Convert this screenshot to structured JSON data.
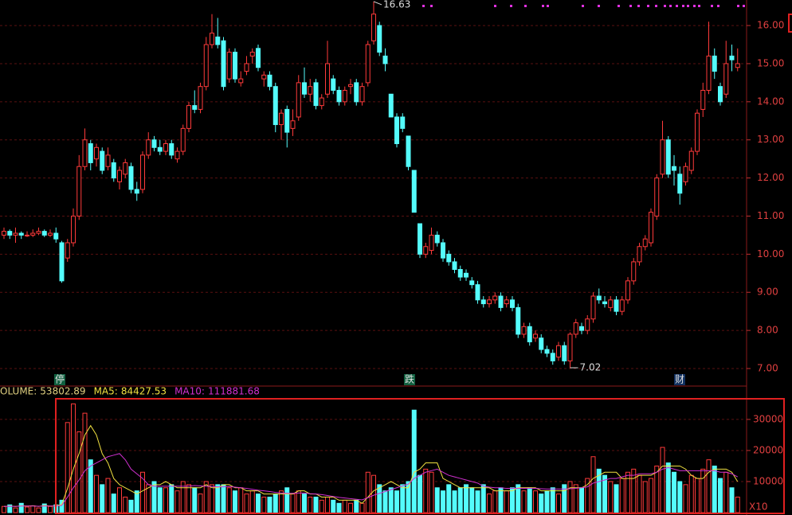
{
  "chart_data": [
    {
      "type": "candlestick",
      "up_color": "#ff3a3a",
      "down_color": "#54fcfc",
      "grid": true,
      "ylim": [
        6.54,
        16.67
      ],
      "yticks": [
        {
          "value": 7,
          "label": "7.00"
        },
        {
          "value": 8,
          "label": "8.00"
        },
        {
          "value": 9,
          "label": "9.00"
        },
        {
          "value": 10,
          "label": "10.00"
        },
        {
          "value": 11,
          "label": "11.00"
        },
        {
          "value": 12,
          "label": "12.00"
        },
        {
          "value": 13,
          "label": "13.00"
        },
        {
          "value": 14,
          "label": "14.00"
        },
        {
          "value": 15,
          "label": "15.00"
        },
        {
          "value": 16,
          "label": "16.00"
        }
      ],
      "markers": [
        "停",
        "跌",
        "财"
      ],
      "ohlc": [
        [
          10.5,
          10.7,
          10.4,
          10.6
        ],
        [
          10.6,
          10.65,
          10.4,
          10.5
        ],
        [
          10.5,
          10.7,
          10.3,
          10.55
        ],
        [
          10.55,
          10.6,
          10.4,
          10.5
        ],
        [
          10.5,
          10.6,
          10.45,
          10.5
        ],
        [
          10.5,
          10.65,
          10.45,
          10.55
        ],
        [
          10.55,
          10.7,
          10.5,
          10.6
        ],
        [
          10.6,
          10.65,
          10.45,
          10.5
        ],
        [
          10.5,
          10.65,
          10.45,
          10.55
        ],
        [
          10.55,
          10.7,
          10.3,
          10.4
        ],
        [
          10.3,
          10.35,
          9.25,
          9.3
        ],
        [
          9.9,
          10.4,
          9.8,
          10.3
        ],
        [
          10.3,
          11.2,
          10.2,
          11.0
        ],
        [
          11.0,
          12.6,
          10.9,
          12.3
        ],
        [
          12.3,
          13.3,
          12.2,
          13.0
        ],
        [
          12.9,
          13.0,
          12.2,
          12.4
        ],
        [
          12.5,
          12.9,
          12.3,
          12.8
        ],
        [
          12.7,
          12.8,
          12.1,
          12.2
        ],
        [
          12.3,
          12.8,
          12.2,
          12.6
        ],
        [
          12.4,
          12.5,
          11.9,
          12.0
        ],
        [
          11.9,
          12.3,
          11.7,
          12.2
        ],
        [
          12.1,
          12.5,
          12.0,
          12.4
        ],
        [
          12.3,
          12.4,
          11.6,
          11.7
        ],
        [
          11.7,
          11.9,
          11.4,
          11.6
        ],
        [
          11.7,
          12.7,
          11.6,
          12.6
        ],
        [
          12.6,
          13.2,
          12.5,
          13.0
        ],
        [
          13.0,
          13.1,
          12.7,
          12.8
        ],
        [
          12.8,
          13.0,
          12.6,
          12.7
        ],
        [
          12.7,
          13.0,
          12.6,
          12.9
        ],
        [
          12.9,
          13.0,
          12.5,
          12.6
        ],
        [
          12.5,
          12.8,
          12.4,
          12.7
        ],
        [
          12.7,
          13.4,
          12.6,
          13.3
        ],
        [
          13.3,
          14.0,
          13.2,
          13.9
        ],
        [
          13.9,
          14.3,
          13.7,
          13.8
        ],
        [
          13.8,
          14.5,
          13.7,
          14.4
        ],
        [
          14.4,
          15.7,
          14.3,
          15.5
        ],
        [
          15.5,
          16.3,
          15.4,
          15.8
        ],
        [
          15.7,
          16.2,
          15.4,
          15.5
        ],
        [
          15.6,
          15.7,
          14.3,
          14.4
        ],
        [
          14.6,
          15.4,
          14.5,
          15.3
        ],
        [
          15.3,
          15.4,
          14.5,
          14.6
        ],
        [
          14.5,
          14.8,
          14.4,
          14.6
        ],
        [
          14.8,
          15.2,
          14.7,
          15.0
        ],
        [
          15.2,
          15.4,
          15.0,
          15.3
        ],
        [
          15.4,
          15.5,
          14.8,
          14.9
        ],
        [
          14.6,
          14.8,
          14.4,
          14.7
        ],
        [
          14.7,
          14.8,
          14.3,
          14.4
        ],
        [
          14.4,
          14.5,
          13.2,
          13.4
        ],
        [
          13.4,
          13.8,
          13.0,
          13.7
        ],
        [
          13.8,
          13.9,
          12.8,
          13.2
        ],
        [
          13.3,
          13.8,
          13.1,
          13.5
        ],
        [
          13.6,
          14.7,
          13.5,
          14.5
        ],
        [
          14.5,
          14.9,
          14.1,
          14.2
        ],
        [
          14.2,
          14.6,
          14.0,
          14.4
        ],
        [
          14.5,
          14.6,
          13.8,
          13.9
        ],
        [
          13.9,
          14.2,
          13.8,
          14.1
        ],
        [
          14.2,
          15.6,
          14.1,
          15.0
        ],
        [
          14.6,
          14.7,
          14.2,
          14.3
        ],
        [
          14.3,
          14.4,
          13.9,
          14.0
        ],
        [
          14.0,
          14.4,
          13.9,
          14.3
        ],
        [
          14.4,
          14.6,
          14.2,
          14.45
        ],
        [
          14.5,
          14.6,
          13.9,
          14.0
        ],
        [
          14.0,
          14.5,
          13.9,
          14.4
        ],
        [
          14.5,
          15.6,
          14.4,
          15.5
        ],
        [
          15.6,
          16.63,
          15.5,
          16.3
        ],
        [
          16.0,
          16.1,
          15.2,
          15.3
        ],
        [
          15.2,
          15.4,
          14.8,
          15.0
        ],
        [
          14.2,
          14.2,
          13.6,
          13.6
        ],
        [
          13.6,
          13.7,
          12.8,
          12.9
        ],
        [
          13.6,
          13.7,
          13.2,
          13.3
        ],
        [
          13.1,
          13.1,
          12.2,
          12.3
        ],
        [
          12.2,
          12.2,
          11.1,
          11.1
        ],
        [
          10.8,
          10.8,
          9.9,
          10.0
        ],
        [
          10.0,
          10.3,
          9.9,
          10.2
        ],
        [
          10.1,
          10.7,
          10.0,
          10.5
        ],
        [
          10.5,
          10.6,
          10.2,
          10.3
        ],
        [
          10.3,
          10.4,
          9.8,
          9.9
        ],
        [
          10.0,
          10.1,
          9.7,
          9.8
        ],
        [
          9.8,
          9.9,
          9.5,
          9.6
        ],
        [
          9.6,
          9.7,
          9.3,
          9.4
        ],
        [
          9.5,
          9.6,
          9.3,
          9.4
        ],
        [
          9.3,
          9.4,
          9.1,
          9.2
        ],
        [
          9.2,
          9.3,
          8.7,
          8.8
        ],
        [
          8.8,
          8.9,
          8.6,
          8.7
        ],
        [
          8.7,
          8.9,
          8.6,
          8.8
        ],
        [
          8.8,
          9.0,
          8.7,
          8.9
        ],
        [
          8.9,
          9.0,
          8.5,
          8.6
        ],
        [
          8.7,
          8.9,
          8.6,
          8.8
        ],
        [
          8.8,
          8.9,
          8.5,
          8.6
        ],
        [
          8.6,
          8.7,
          7.8,
          7.9
        ],
        [
          7.9,
          8.2,
          7.8,
          8.1
        ],
        [
          8.1,
          8.2,
          7.6,
          7.7
        ],
        [
          7.8,
          8.0,
          7.7,
          7.9
        ],
        [
          7.8,
          7.9,
          7.4,
          7.5
        ],
        [
          7.5,
          7.6,
          7.3,
          7.4
        ],
        [
          7.4,
          7.5,
          7.1,
          7.2
        ],
        [
          7.3,
          7.7,
          7.2,
          7.6
        ],
        [
          7.6,
          7.7,
          7.1,
          7.2
        ],
        [
          7.2,
          7.95,
          7.02,
          7.9
        ],
        [
          7.9,
          8.3,
          7.8,
          8.2
        ],
        [
          8.1,
          8.2,
          7.9,
          8.0
        ],
        [
          8.0,
          8.4,
          7.9,
          8.3
        ],
        [
          8.3,
          9.0,
          8.2,
          8.9
        ],
        [
          8.9,
          9.1,
          8.7,
          8.8
        ],
        [
          8.75,
          8.9,
          8.6,
          8.7
        ],
        [
          8.6,
          8.9,
          8.5,
          8.8
        ],
        [
          8.8,
          8.9,
          8.4,
          8.5
        ],
        [
          8.5,
          8.9,
          8.4,
          8.8
        ],
        [
          8.8,
          9.4,
          8.7,
          9.3
        ],
        [
          9.3,
          9.9,
          9.2,
          9.8
        ],
        [
          9.8,
          10.3,
          9.7,
          10.2
        ],
        [
          10.2,
          10.5,
          10.1,
          10.4
        ],
        [
          10.3,
          11.2,
          10.2,
          11.1
        ],
        [
          11.0,
          12.1,
          10.9,
          12.0
        ],
        [
          12.1,
          13.5,
          12.0,
          13.0
        ],
        [
          13.0,
          13.1,
          12.0,
          12.1
        ],
        [
          12.3,
          12.6,
          11.8,
          12.2
        ],
        [
          12.1,
          12.3,
          11.3,
          11.6
        ],
        [
          11.9,
          12.4,
          11.8,
          12.3
        ],
        [
          12.2,
          12.8,
          12.1,
          12.7
        ],
        [
          12.7,
          13.8,
          12.6,
          13.7
        ],
        [
          13.8,
          14.5,
          13.6,
          14.3
        ],
        [
          14.3,
          16.1,
          14.2,
          15.2
        ],
        [
          15.2,
          15.4,
          14.6,
          14.8
        ],
        [
          14.4,
          14.5,
          13.9,
          14.0
        ],
        [
          14.2,
          15.6,
          14.1,
          15.0
        ],
        [
          15.2,
          15.5,
          14.8,
          15.1
        ],
        [
          14.9,
          15.4,
          14.8,
          15.0
        ]
      ]
    },
    {
      "type": "bar",
      "grid": true,
      "unit_label": "X10",
      "ylim": [
        0,
        36900
      ],
      "yticks": [
        10000,
        20000,
        30000
      ],
      "series": [
        {
          "name": "VOLUME:",
          "color": "#e0d080",
          "legend_value": 53802.89,
          "values": [
            2000,
            2500,
            1500,
            3000,
            1800,
            2200,
            1500,
            2800,
            2000,
            2500,
            4000,
            29000,
            35000,
            26000,
            32000,
            17000,
            12000,
            9000,
            11000,
            6000,
            8000,
            5000,
            4000,
            7000,
            13000,
            9000,
            10000,
            8000,
            8000,
            9000,
            7000,
            10000,
            9000,
            8000,
            6000,
            10000,
            9000,
            9000,
            9000,
            8000,
            7000,
            8000,
            6000,
            7000,
            6000,
            5000,
            5000,
            6000,
            7000,
            8000,
            6000,
            7000,
            6000,
            5000,
            5000,
            4000,
            5000,
            4000,
            3000,
            4000,
            3000,
            4000,
            3000,
            13000,
            12000,
            9000,
            7000,
            8000,
            7000,
            9000,
            10000,
            33000,
            12000,
            14000,
            13000,
            8000,
            7000,
            9000,
            7000,
            8000,
            9000,
            8000,
            7000,
            9000,
            6000,
            7000,
            8000,
            7000,
            8000,
            9000,
            7000,
            8000,
            7000,
            6000,
            7000,
            8000,
            6000,
            9000,
            10000,
            9000,
            8000,
            11000,
            18000,
            14000,
            12000,
            10000,
            9000,
            11000,
            13000,
            14000,
            12000,
            10000,
            11000,
            15000,
            21000,
            16000,
            13000,
            10000,
            9000,
            12000,
            11000,
            14000,
            17000,
            15000,
            11000,
            13000,
            8000,
            5000
          ]
        },
        {
          "name": "MA5:",
          "color": "#f0e040",
          "legend_value": 84427.53,
          "values": [
            2000,
            2100,
            2000,
            2200,
            2100,
            2200,
            2000,
            2300,
            2100,
            2200,
            2600,
            7800,
            14000,
            19000,
            25000,
            28000,
            25000,
            19000,
            16000,
            11000,
            9000,
            8000,
            7000,
            6000,
            7000,
            8000,
            9000,
            9000,
            10000,
            9000,
            8000,
            8000,
            8000,
            8000,
            8000,
            9000,
            8000,
            8000,
            9000,
            9000,
            8000,
            8000,
            7000,
            7000,
            7000,
            6000,
            6000,
            6000,
            6000,
            6000,
            6000,
            7000,
            7000,
            6000,
            6000,
            5000,
            5000,
            5000,
            4000,
            4000,
            4000,
            4000,
            3000,
            5000,
            7000,
            8000,
            9000,
            10000,
            9000,
            8000,
            8000,
            13000,
            14000,
            16000,
            16000,
            16000,
            11000,
            10000,
            9000,
            8000,
            8000,
            8000,
            8000,
            8000,
            8000,
            7000,
            7000,
            7000,
            7000,
            8000,
            8000,
            8000,
            8000,
            7000,
            7000,
            7000,
            7000,
            7000,
            8000,
            8000,
            8000,
            9000,
            11000,
            12000,
            13000,
            13000,
            13000,
            11000,
            11000,
            11000,
            12000,
            12000,
            12000,
            13000,
            15000,
            15000,
            15000,
            15000,
            14000,
            12000,
            11000,
            11000,
            13000,
            14000,
            14000,
            14000,
            13000,
            10000
          ]
        },
        {
          "name": "MA10:",
          "color": "#d030d0",
          "legend_value": 111881.68,
          "values": [
            2000,
            2050,
            2000,
            2100,
            2100,
            2100,
            2050,
            2100,
            2100,
            2150,
            2300,
            5000,
            8000,
            10500,
            13500,
            15000,
            16000,
            17000,
            18000,
            18500,
            19000,
            17000,
            14000,
            12500,
            11000,
            9000,
            8500,
            8500,
            8500,
            8500,
            8500,
            8500,
            8500,
            8700,
            8600,
            8500,
            8400,
            8300,
            8300,
            8400,
            8200,
            8000,
            7800,
            7500,
            7200,
            7000,
            6800,
            6500,
            6300,
            6200,
            6200,
            6300,
            6300,
            6100,
            6000,
            5800,
            5500,
            5200,
            4900,
            4700,
            4500,
            4300,
            4100,
            4800,
            5600,
            6200,
            6800,
            7400,
            8000,
            8600,
            9200,
            11000,
            12000,
            13000,
            13500,
            14000,
            13000,
            12000,
            11500,
            11000,
            10500,
            10000,
            9500,
            8500,
            8200,
            8000,
            8000,
            7800,
            7800,
            7800,
            7800,
            7800,
            7800,
            7700,
            7600,
            7600,
            7600,
            7600,
            7700,
            7800,
            8000,
            8300,
            9500,
            10000,
            10500,
            11000,
            11000,
            11500,
            12000,
            12000,
            12500,
            12500,
            12500,
            13000,
            14000,
            14500,
            14000,
            13500,
            13500,
            13500,
            13500,
            13500,
            13500,
            13500,
            13000,
            13000,
            12500,
            11500
          ]
        }
      ]
    }
  ]
}
